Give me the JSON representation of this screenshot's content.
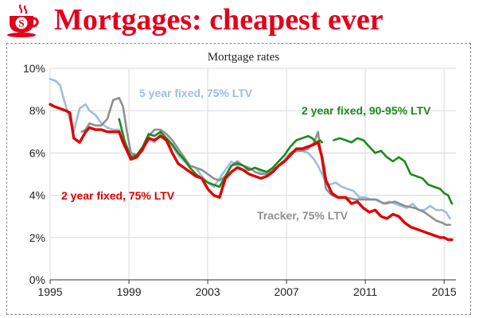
{
  "header": {
    "title": "Mortgages: cheapest ever",
    "logo_icon": "coffee-cup-s-icon",
    "logo_letter": "S",
    "accent": "#e3001b"
  },
  "chart_data": {
    "type": "line",
    "title": "Mortgage rates",
    "xlabel": "",
    "ylabel": "",
    "xlim": [
      1995,
      2015.6
    ],
    "ylim": [
      0,
      10
    ],
    "x_ticks": [
      1995,
      1999,
      2003,
      2007,
      2011,
      2015
    ],
    "x_tick_labels": [
      "1995",
      "1999",
      "2003",
      "2007",
      "2011",
      "2015"
    ],
    "y_ticks": [
      0,
      2,
      4,
      6,
      8,
      10
    ],
    "y_tick_labels": [
      "0%",
      "2%",
      "4%",
      "6%",
      "8%",
      "10%"
    ],
    "grid": true,
    "legend": "inline labels",
    "series": [
      {
        "name": "5 year fixed, 75% LTV",
        "color": "#9dbde1",
        "x": [
          1995.0,
          1995.3,
          1995.5,
          1995.8,
          1996.0,
          1996.2,
          1996.3,
          1996.5,
          1996.8,
          1997.0,
          1997.3,
          1997.6,
          1997.9,
          1998.2,
          1998.5,
          1998.7,
          1998.9,
          1999.1,
          1999.4,
          1999.7,
          2000.0,
          2000.3,
          2000.6,
          2000.9,
          2001.2,
          2001.5,
          2001.8,
          2002.1,
          2002.4,
          2002.7,
          2003.0,
          2003.3,
          2003.6,
          2003.9,
          2004.2,
          2004.5,
          2004.8,
          2005.1,
          2005.4,
          2005.7,
          2006.0,
          2006.3,
          2006.6,
          2006.9,
          2007.2,
          2007.5,
          2007.8,
          2008.1,
          2008.4,
          2008.6,
          2008.8,
          2009.0,
          2009.2,
          2009.5,
          2009.8,
          2010.1,
          2010.4,
          2010.7,
          2011.0,
          2011.3,
          2011.6,
          2011.9,
          2012.2,
          2012.5,
          2012.8,
          2013.1,
          2013.4,
          2013.7,
          2014.0,
          2014.3,
          2014.6,
          2014.9,
          2015.1,
          2015.3
        ],
        "y": [
          9.5,
          9.4,
          9.2,
          8.2,
          7.6,
          7.0,
          7.4,
          8.1,
          8.3,
          8.0,
          7.8,
          7.4,
          7.2,
          7.1,
          7.1,
          6.8,
          6.3,
          5.9,
          5.8,
          6.2,
          6.6,
          6.5,
          6.9,
          6.7,
          6.3,
          5.9,
          5.6,
          5.4,
          5.3,
          4.9,
          4.6,
          4.4,
          4.8,
          5.2,
          5.6,
          5.4,
          5.2,
          5.2,
          5.3,
          5.1,
          5.0,
          5.2,
          5.4,
          5.7,
          6.0,
          6.2,
          6.1,
          6.0,
          5.7,
          5.4,
          5.0,
          4.6,
          4.5,
          4.6,
          4.4,
          4.3,
          4.2,
          3.9,
          3.9,
          3.8,
          3.8,
          3.6,
          3.7,
          3.6,
          3.5,
          3.4,
          3.6,
          3.3,
          3.3,
          3.5,
          3.3,
          3.3,
          3.2,
          2.9
        ]
      },
      {
        "name": "Tracker, 75% LTV",
        "color": "#8f8f8f",
        "x": [
          1996.6,
          1996.8,
          1997.0,
          1997.3,
          1997.6,
          1997.9,
          1998.2,
          1998.5,
          1998.7,
          1998.9,
          1999.1,
          1999.4,
          1999.7,
          2000.0,
          2000.3,
          2000.6,
          2000.9,
          2001.2,
          2001.5,
          2001.8,
          2002.1,
          2002.4,
          2002.7,
          2003.0,
          2003.3,
          2003.6,
          2003.9,
          2004.2,
          2004.5,
          2004.8,
          2005.1,
          2005.4,
          2005.7,
          2006.0,
          2006.3,
          2006.6,
          2006.9,
          2007.2,
          2007.5,
          2007.8,
          2008.1,
          2008.4,
          2008.6,
          2008.8,
          2009.0,
          2009.3,
          2009.6,
          2010.0,
          2010.5,
          2011.0,
          2011.5,
          2012.0,
          2012.5,
          2013.0,
          2013.5,
          2014.0,
          2014.3,
          2014.6,
          2014.9,
          2015.1,
          2015.3
        ],
        "y": [
          7.0,
          7.1,
          7.4,
          7.3,
          7.3,
          7.6,
          8.5,
          8.6,
          8.2,
          7.0,
          6.0,
          5.9,
          6.1,
          6.8,
          7.1,
          7.1,
          6.9,
          6.6,
          6.2,
          5.8,
          5.4,
          5.3,
          5.2,
          5.0,
          4.8,
          4.7,
          4.9,
          5.4,
          5.6,
          5.4,
          5.3,
          5.1,
          5.0,
          5.0,
          5.2,
          5.4,
          5.6,
          6.0,
          6.1,
          6.1,
          6.2,
          6.5,
          7.0,
          5.6,
          4.3,
          4.0,
          3.9,
          3.9,
          3.8,
          3.8,
          3.8,
          3.6,
          3.7,
          3.5,
          3.4,
          3.2,
          3.0,
          2.8,
          2.7,
          2.6,
          2.6
        ]
      },
      {
        "name": "2 year fixed, 90-95% LTV",
        "color": "#1a8a1a",
        "x": [
          1998.5,
          1998.8,
          1999.1,
          1999.4,
          1999.7,
          2000.0,
          2000.3,
          2000.6,
          2000.9,
          2001.2,
          2001.5,
          2001.8,
          2002.1,
          2002.4,
          2002.7,
          2003.0,
          2003.3,
          2003.6,
          2003.9,
          2004.2,
          2004.5,
          2004.8,
          2005.1,
          2005.4,
          2005.7,
          2006.0,
          2006.3,
          2006.6,
          2006.9,
          2007.2,
          2007.5,
          2007.8,
          2008.1,
          2008.3,
          2008.5,
          2008.7,
          2008.8,
          null,
          2009.4,
          2009.7,
          2010.0,
          2010.3,
          2010.6,
          2010.9,
          2011.2,
          2011.5,
          2011.8,
          2012.1,
          2012.4,
          2012.7,
          2013.0,
          2013.3,
          2013.6,
          2013.9,
          2014.2,
          2014.5,
          2014.8,
          2015.0,
          2015.2,
          2015.4
        ],
        "y": [
          7.6,
          6.5,
          5.8,
          5.9,
          6.3,
          6.9,
          6.8,
          7.0,
          6.7,
          6.4,
          6.0,
          5.7,
          5.3,
          5.0,
          4.8,
          4.6,
          4.5,
          4.4,
          4.9,
          5.4,
          5.5,
          5.4,
          5.2,
          5.3,
          5.2,
          5.1,
          5.3,
          5.6,
          5.9,
          6.3,
          6.6,
          6.7,
          6.8,
          6.7,
          6.5,
          6.6,
          6.5,
          null,
          6.6,
          6.7,
          6.6,
          6.5,
          6.7,
          6.6,
          6.3,
          6.0,
          6.1,
          5.8,
          5.6,
          5.8,
          5.6,
          5.0,
          4.9,
          4.8,
          4.5,
          4.4,
          4.3,
          4.1,
          4.0,
          3.6
        ]
      },
      {
        "name": "2 year fixed, 75% LTV",
        "color": "#e00000",
        "x": [
          1995.0,
          1995.2,
          1995.5,
          1995.8,
          1996.0,
          1996.2,
          1996.5,
          1996.8,
          1997.0,
          1997.3,
          1997.6,
          1997.9,
          1998.2,
          1998.5,
          1998.7,
          1998.9,
          1999.1,
          1999.4,
          1999.7,
          2000.0,
          2000.3,
          2000.6,
          2000.9,
          2001.2,
          2001.5,
          2001.8,
          2002.1,
          2002.4,
          2002.7,
          2003.0,
          2003.3,
          2003.6,
          2003.9,
          2004.2,
          2004.5,
          2004.8,
          2005.1,
          2005.4,
          2005.7,
          2006.0,
          2006.3,
          2006.6,
          2006.9,
          2007.2,
          2007.5,
          2007.8,
          2008.1,
          2008.4,
          2008.6,
          2008.8,
          2009.0,
          2009.3,
          2009.6,
          2010.0,
          2010.3,
          2010.6,
          2010.9,
          2011.2,
          2011.5,
          2011.8,
          2012.1,
          2012.4,
          2012.7,
          2013.0,
          2013.3,
          2013.6,
          2013.9,
          2014.2,
          2014.5,
          2014.8,
          2015.0,
          2015.2,
          2015.4
        ],
        "y": [
          8.3,
          8.2,
          8.1,
          8.0,
          7.9,
          6.7,
          6.5,
          7.0,
          7.2,
          7.1,
          7.1,
          7.0,
          7.0,
          7.0,
          6.5,
          6.1,
          5.7,
          5.8,
          6.2,
          6.7,
          6.6,
          6.8,
          6.6,
          6.0,
          5.5,
          5.3,
          5.1,
          4.9,
          4.8,
          4.3,
          4.0,
          3.9,
          4.8,
          5.1,
          5.3,
          5.2,
          5.0,
          4.9,
          4.8,
          4.9,
          5.1,
          5.4,
          5.6,
          5.9,
          6.2,
          6.2,
          6.3,
          6.4,
          6.5,
          5.8,
          4.7,
          4.1,
          3.9,
          3.9,
          3.6,
          3.7,
          3.4,
          3.2,
          3.3,
          3.0,
          2.9,
          3.1,
          3.0,
          2.7,
          2.5,
          2.4,
          2.3,
          2.2,
          2.1,
          2.0,
          2.0,
          1.9,
          1.9
        ]
      }
    ],
    "annotations": [
      {
        "series": 0,
        "text": "5 year fixed, 75% LTV"
      },
      {
        "series": 2,
        "text": "2 year fixed, 90-95% LTV"
      },
      {
        "series": 3,
        "text": "2 year fixed, 75% LTV"
      },
      {
        "series": 1,
        "text": "Tracker, 75% LTV"
      }
    ]
  }
}
